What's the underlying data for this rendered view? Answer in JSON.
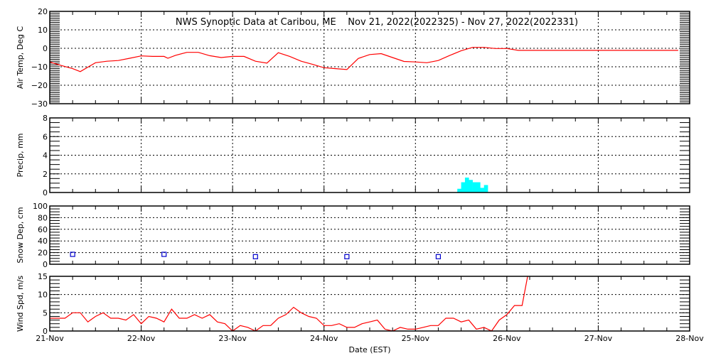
{
  "chart_data": [
    {
      "type": "line",
      "title": "NWS Synoptic Data at Caribou, ME    Nov 21, 2022(2022325) - Nov 27, 2022(2022331)",
      "ylabel": "Air Temp, Deg C",
      "ylim": [
        -30,
        20
      ],
      "yticks": [
        20,
        10,
        0,
        -10,
        -20,
        -30
      ],
      "grid": true,
      "color": "#ff0000",
      "x": [
        "2022-11-21 00:00",
        "2022-11-21 03:00",
        "2022-11-21 06:00",
        "2022-11-21 08:00",
        "2022-11-21 12:00",
        "2022-11-21 15:00",
        "2022-11-21 18:00",
        "2022-11-21 21:00",
        "2022-11-22 00:00",
        "2022-11-22 03:00",
        "2022-11-22 06:00",
        "2022-11-22 07:00",
        "2022-11-22 09:00",
        "2022-11-22 12:00",
        "2022-11-22 15:00",
        "2022-11-22 18:00",
        "2022-11-22 21:00",
        "2022-11-23 00:00",
        "2022-11-23 03:00",
        "2022-11-23 06:00",
        "2022-11-23 09:00",
        "2022-11-23 12:00",
        "2022-11-23 15:00",
        "2022-11-23 18:00",
        "2022-11-23 21:00",
        "2022-11-23 22:00",
        "2022-11-24 00:00",
        "2022-11-24 03:00",
        "2022-11-24 06:00",
        "2022-11-24 09:00",
        "2022-11-24 12:00",
        "2022-11-24 15:00",
        "2022-11-24 18:00",
        "2022-11-24 21:00",
        "2022-11-25 00:00",
        "2022-11-25 03:00",
        "2022-11-25 06:00",
        "2022-11-25 09:00",
        "2022-11-25 12:00",
        "2022-11-25 15:00",
        "2022-11-25 18:00",
        "2022-11-25 21:00",
        "2022-11-26 00:00",
        "2022-11-26 03:00",
        "2022-11-27 21:00"
      ],
      "values": [
        -7.4,
        -9.3,
        -11,
        -12.6,
        -7.8,
        -7,
        -6.6,
        -5.4,
        -4.1,
        -4.4,
        -4.4,
        -5.4,
        -3.8,
        -2.2,
        -2.2,
        -4,
        -5,
        -4.4,
        -4.4,
        -7,
        -8,
        -2.4,
        -4.4,
        -7,
        -8.7,
        -9.3,
        -10.5,
        -11,
        -11.5,
        -5.5,
        -3.4,
        -2.9,
        -5,
        -7.1,
        -7.4,
        -7.8,
        -6.6,
        -3.9,
        -1.3,
        0.5,
        0.5,
        -0.1,
        -0.1,
        -1.1,
        -1.1
      ]
    },
    {
      "type": "bar",
      "ylabel": "Precip, mm",
      "ylim": [
        0,
        8
      ],
      "yticks": [
        8,
        6,
        4,
        2,
        0
      ],
      "grid": true,
      "color": "#00ffff",
      "x": [
        "2022-11-25 11:00",
        "2022-11-25 12:00",
        "2022-11-25 13:00",
        "2022-11-25 14:00",
        "2022-11-25 15:00",
        "2022-11-25 16:00",
        "2022-11-25 17:00",
        "2022-11-25 18:00"
      ],
      "values": [
        0.4,
        1.1,
        1.6,
        1.35,
        1.1,
        1.1,
        0.5,
        0.8
      ]
    },
    {
      "type": "scatter",
      "ylabel": "Snow Dep, cm",
      "ylim": [
        0,
        100
      ],
      "yticks": [
        100,
        80,
        60,
        40,
        20,
        0
      ],
      "grid": true,
      "color": "#0000cc",
      "x": [
        "2022-11-21 06:00",
        "2022-11-22 06:00",
        "2022-11-23 06:00",
        "2022-11-24 06:00",
        "2022-11-25 06:00"
      ],
      "values": [
        17,
        17,
        13,
        13,
        13
      ]
    },
    {
      "type": "line",
      "xlabel": "Date (EST)",
      "ylabel": "Wind Spd, m/s",
      "ylim": [
        0,
        15
      ],
      "yticks": [
        15,
        10,
        5,
        0
      ],
      "grid": true,
      "color": "#ff0000",
      "xtick_labels": [
        "21-Nov",
        "22-Nov",
        "23-Nov",
        "24-Nov",
        "25-Nov",
        "26-Nov",
        "27-Nov",
        "28-Nov"
      ],
      "xlim": [
        "2022-11-21 00:00",
        "2022-11-28 00:00"
      ],
      "x_start": "2022-11-21 00:00",
      "x_step_hours": 2,
      "values": [
        3.5,
        3.5,
        3.5,
        5,
        5,
        2.5,
        4,
        5,
        3.5,
        3.5,
        3,
        4.5,
        2,
        4,
        3.5,
        2.5,
        6,
        3.5,
        3.5,
        4.5,
        3.5,
        4.5,
        2.5,
        2,
        0,
        1.5,
        1,
        0,
        1.5,
        1.5,
        3.5,
        4.5,
        6.5,
        5,
        4,
        3.5,
        1.5,
        1.5,
        2,
        1,
        1,
        2,
        2.5,
        3,
        0.5,
        0,
        1,
        0.5,
        0.5,
        1,
        1.5,
        1.5,
        3.5,
        3.5,
        2.5,
        3,
        0.5,
        1,
        0,
        3,
        4.5,
        7,
        7,
        18
      ]
    }
  ]
}
